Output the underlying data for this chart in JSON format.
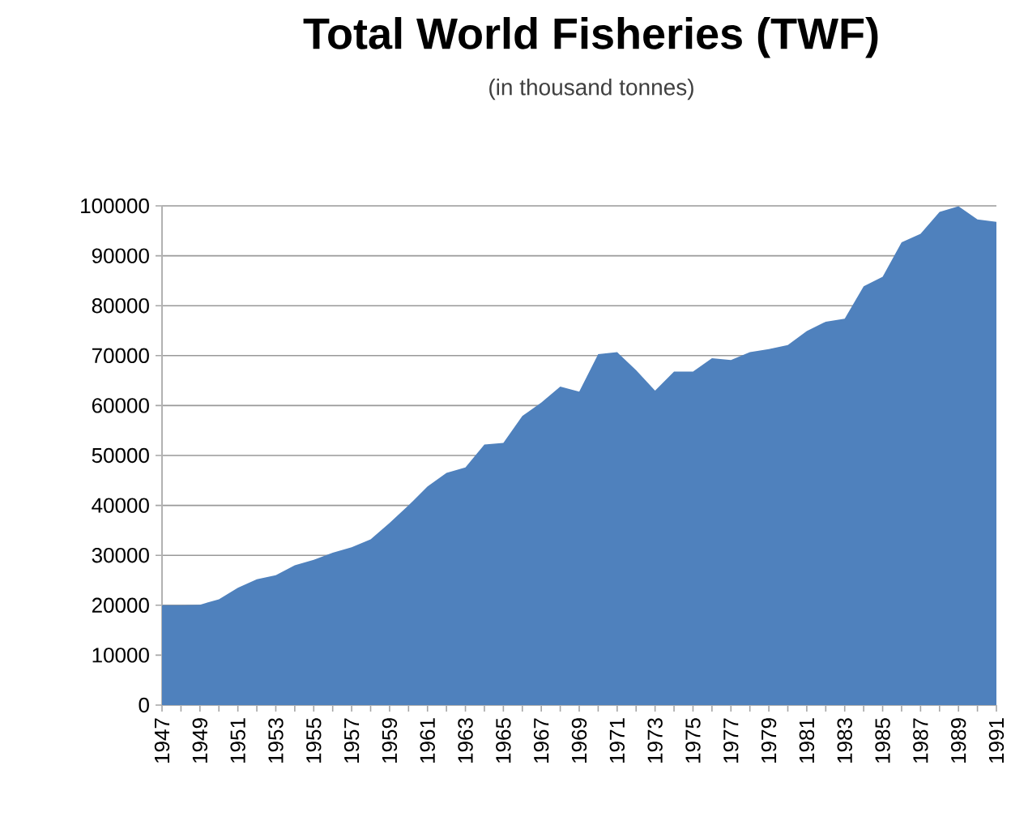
{
  "chart_data": {
    "type": "area",
    "title": "Total World Fisheries (TWF)",
    "subtitle": "(in thousand tonnes)",
    "categories": [
      "1947",
      null,
      "1949",
      null,
      "1951",
      null,
      "1953",
      null,
      "1955",
      null,
      "1957",
      null,
      "1959",
      null,
      "1961",
      null,
      "1963",
      null,
      "1965",
      null,
      "1967",
      null,
      "1969",
      null,
      "1971",
      null,
      "1973",
      null,
      "1975",
      null,
      "1977",
      null,
      "1979",
      null,
      "1981",
      null,
      "1983",
      null,
      "1985",
      null,
      "1987",
      null,
      "1989",
      null,
      "1991"
    ],
    "values": [
      20000,
      20000,
      20100,
      21200,
      23500,
      25200,
      26000,
      28000,
      29100,
      30500,
      31600,
      33200,
      36500,
      40000,
      43800,
      46500,
      47600,
      52200,
      52500,
      57900,
      60600,
      63800,
      62800,
      70300,
      70700,
      67100,
      63000,
      66800,
      66800,
      69500,
      69100,
      70700,
      71300,
      72100,
      74900,
      76800,
      77400,
      83900,
      85800,
      92700,
      94400,
      98800,
      99900,
      97300,
      96800
    ],
    "color": "#4f81bd",
    "ylim": [
      0,
      100000
    ],
    "yticks": [
      0,
      10000,
      20000,
      30000,
      40000,
      50000,
      60000,
      70000,
      80000,
      90000,
      100000
    ],
    "grid": "y"
  }
}
